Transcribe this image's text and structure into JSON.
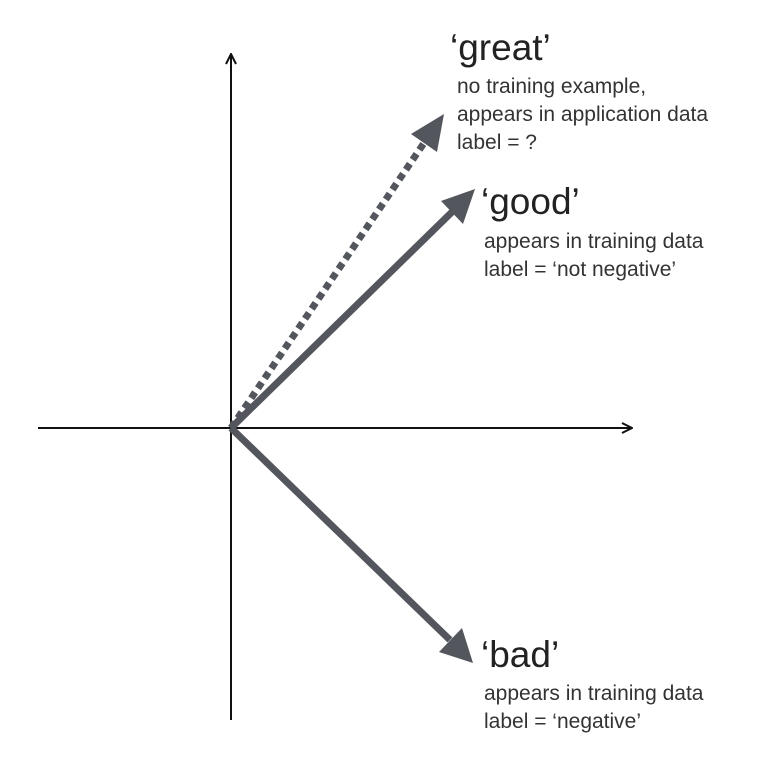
{
  "vectors": [
    {
      "id": "great",
      "word": "‘great’",
      "lines": [
        "no training example,",
        "appears in application data",
        "label = ?"
      ],
      "style": "dotted"
    },
    {
      "id": "good",
      "word": "‘good’",
      "lines": [
        "appears in training data",
        "label = ‘not negative’"
      ],
      "style": "solid"
    },
    {
      "id": "bad",
      "word": "‘bad’",
      "lines": [
        "appears in training data",
        "label = ‘negative’"
      ],
      "style": "solid"
    }
  ],
  "colors": {
    "axis": "#111111",
    "vector": "#54565e",
    "text": "#222222"
  }
}
